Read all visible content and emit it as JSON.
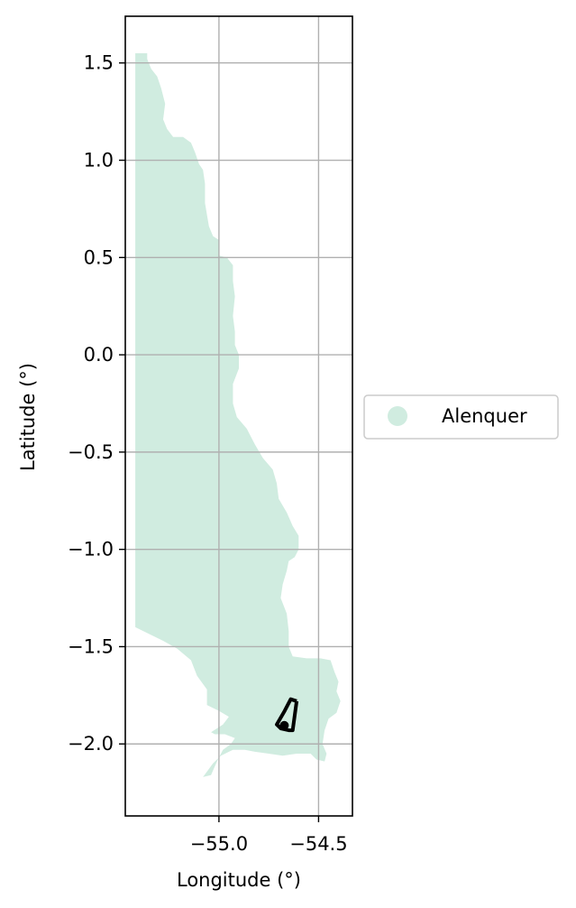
{
  "chart_data": {
    "type": "map",
    "xlabel": "Longitude (°)",
    "ylabel": "Latitude (°)",
    "xlim": [
      -55.47,
      -54.33
    ],
    "ylim": [
      -2.37,
      1.74
    ],
    "xticks": [
      {
        "value": -55.0,
        "label": "−55.0"
      },
      {
        "value": -54.5,
        "label": "−54.5"
      }
    ],
    "yticks": [
      {
        "value": 1.5,
        "label": "1.5"
      },
      {
        "value": 1.0,
        "label": "1.0"
      },
      {
        "value": 0.5,
        "label": "0.5"
      },
      {
        "value": 0.0,
        "label": "0.0"
      },
      {
        "value": -0.5,
        "label": "−0.5"
      },
      {
        "value": -1.0,
        "label": "−1.0"
      },
      {
        "value": -1.5,
        "label": "−1.5"
      },
      {
        "value": -2.0,
        "label": "−2.0"
      }
    ],
    "grid": true,
    "legend_position": "right",
    "region": {
      "name": "Alenquer",
      "color": "#d0ece0",
      "boundary": [
        [
          -55.42,
          1.55
        ],
        [
          -55.36,
          1.55
        ],
        [
          -55.36,
          1.52
        ],
        [
          -55.34,
          1.47
        ],
        [
          -55.31,
          1.43
        ],
        [
          -55.29,
          1.37
        ],
        [
          -55.27,
          1.29
        ],
        [
          -55.28,
          1.21
        ],
        [
          -55.26,
          1.16
        ],
        [
          -55.23,
          1.12
        ],
        [
          -55.18,
          1.12
        ],
        [
          -55.14,
          1.09
        ],
        [
          -55.12,
          1.04
        ],
        [
          -55.1,
          0.98
        ],
        [
          -55.08,
          0.95
        ],
        [
          -55.07,
          0.88
        ],
        [
          -55.07,
          0.78
        ],
        [
          -55.06,
          0.72
        ],
        [
          -55.05,
          0.66
        ],
        [
          -55.03,
          0.61
        ],
        [
          -55.0,
          0.59
        ],
        [
          -55.0,
          0.51
        ],
        [
          -54.96,
          0.5
        ],
        [
          -54.93,
          0.46
        ],
        [
          -54.93,
          0.38
        ],
        [
          -54.92,
          0.3
        ],
        [
          -54.93,
          0.2
        ],
        [
          -54.92,
          0.12
        ],
        [
          -54.92,
          0.05
        ],
        [
          -54.9,
          0.0
        ],
        [
          -54.9,
          -0.07
        ],
        [
          -54.93,
          -0.15
        ],
        [
          -54.93,
          -0.25
        ],
        [
          -54.91,
          -0.32
        ],
        [
          -54.86,
          -0.38
        ],
        [
          -54.82,
          -0.46
        ],
        [
          -54.78,
          -0.53
        ],
        [
          -54.73,
          -0.59
        ],
        [
          -54.71,
          -0.66
        ],
        [
          -54.7,
          -0.74
        ],
        [
          -54.66,
          -0.81
        ],
        [
          -54.63,
          -0.88
        ],
        [
          -54.6,
          -0.93
        ],
        [
          -54.6,
          -1.0
        ],
        [
          -54.62,
          -1.04
        ],
        [
          -54.65,
          -1.06
        ],
        [
          -54.66,
          -1.11
        ],
        [
          -54.68,
          -1.18
        ],
        [
          -54.69,
          -1.25
        ],
        [
          -54.66,
          -1.33
        ],
        [
          -54.65,
          -1.42
        ],
        [
          -54.65,
          -1.5
        ],
        [
          -54.63,
          -1.55
        ],
        [
          -54.56,
          -1.56
        ],
        [
          -54.49,
          -1.56
        ],
        [
          -54.44,
          -1.57
        ],
        [
          -54.42,
          -1.63
        ],
        [
          -54.4,
          -1.68
        ],
        [
          -54.41,
          -1.73
        ],
        [
          -54.39,
          -1.78
        ],
        [
          -54.41,
          -1.84
        ],
        [
          -54.45,
          -1.87
        ],
        [
          -54.47,
          -1.93
        ],
        [
          -54.48,
          -2.0
        ],
        [
          -54.46,
          -2.05
        ],
        [
          -54.47,
          -2.09
        ],
        [
          -54.51,
          -2.08
        ],
        [
          -54.54,
          -2.05
        ],
        [
          -54.61,
          -2.05
        ],
        [
          -54.68,
          -2.06
        ],
        [
          -54.75,
          -2.05
        ],
        [
          -54.82,
          -2.04
        ],
        [
          -54.87,
          -2.03
        ],
        [
          -54.93,
          -2.03
        ],
        [
          -54.99,
          -2.06
        ],
        [
          -55.03,
          -2.1
        ],
        [
          -55.08,
          -2.17
        ],
        [
          -55.04,
          -2.16
        ],
        [
          -55.01,
          -2.09
        ],
        [
          -54.98,
          -2.03
        ],
        [
          -54.94,
          -2.0
        ],
        [
          -54.92,
          -1.97
        ],
        [
          -54.97,
          -1.95
        ],
        [
          -55.02,
          -1.95
        ],
        [
          -55.04,
          -1.94
        ],
        [
          -54.98,
          -1.9
        ],
        [
          -54.95,
          -1.86
        ],
        [
          -55.0,
          -1.83
        ],
        [
          -55.06,
          -1.8
        ],
        [
          -55.06,
          -1.72
        ],
        [
          -55.11,
          -1.65
        ],
        [
          -55.14,
          -1.57
        ],
        [
          -55.21,
          -1.51
        ],
        [
          -55.28,
          -1.47
        ],
        [
          -55.34,
          -1.44
        ],
        [
          -55.42,
          -1.4
        ]
      ]
    },
    "overlay_outline": {
      "color": "#000000",
      "points": [
        [
          -54.61,
          -1.78
        ],
        [
          -54.64,
          -1.77
        ],
        [
          -54.67,
          -1.83
        ],
        [
          -54.71,
          -1.9
        ],
        [
          -54.69,
          -1.92
        ],
        [
          -54.65,
          -1.93
        ],
        [
          -54.63,
          -1.93
        ],
        [
          -54.61,
          -1.78
        ]
      ]
    },
    "marker": {
      "x": -54.672,
      "y": -1.905,
      "color": "#000000"
    }
  },
  "legend": {
    "items": [
      {
        "label": "Alenquer",
        "color": "#d0ece0"
      }
    ]
  }
}
